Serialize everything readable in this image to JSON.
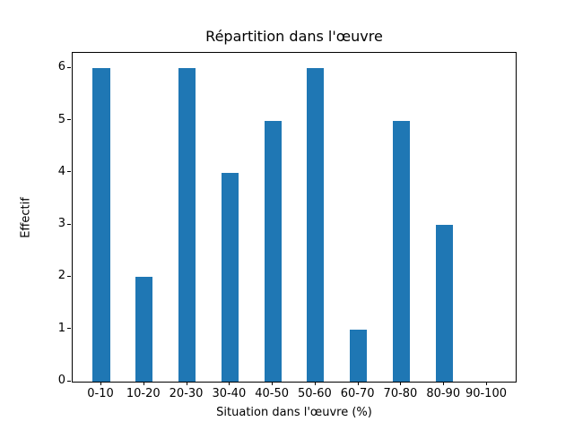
{
  "chart_data": {
    "type": "bar",
    "title": "Répartition dans l'œuvre",
    "xlabel": "Situation dans l'œuvre (%)",
    "ylabel": "Effectif",
    "categories": [
      "0-10",
      "10-20",
      "20-30",
      "30-40",
      "40-50",
      "50-60",
      "60-70",
      "70-80",
      "80-90",
      "90-100"
    ],
    "values": [
      6,
      2,
      6,
      4,
      5,
      6,
      1,
      5,
      3,
      0
    ],
    "yticks": [
      0,
      1,
      2,
      3,
      4,
      5,
      6
    ],
    "xlim": [
      -0.67,
      9.67
    ],
    "ylim": [
      0,
      6.3
    ],
    "bar_width_units": 0.4,
    "bar_color": "#1f77b4",
    "axis_color": "#000000",
    "grid": false,
    "legend": false
  }
}
